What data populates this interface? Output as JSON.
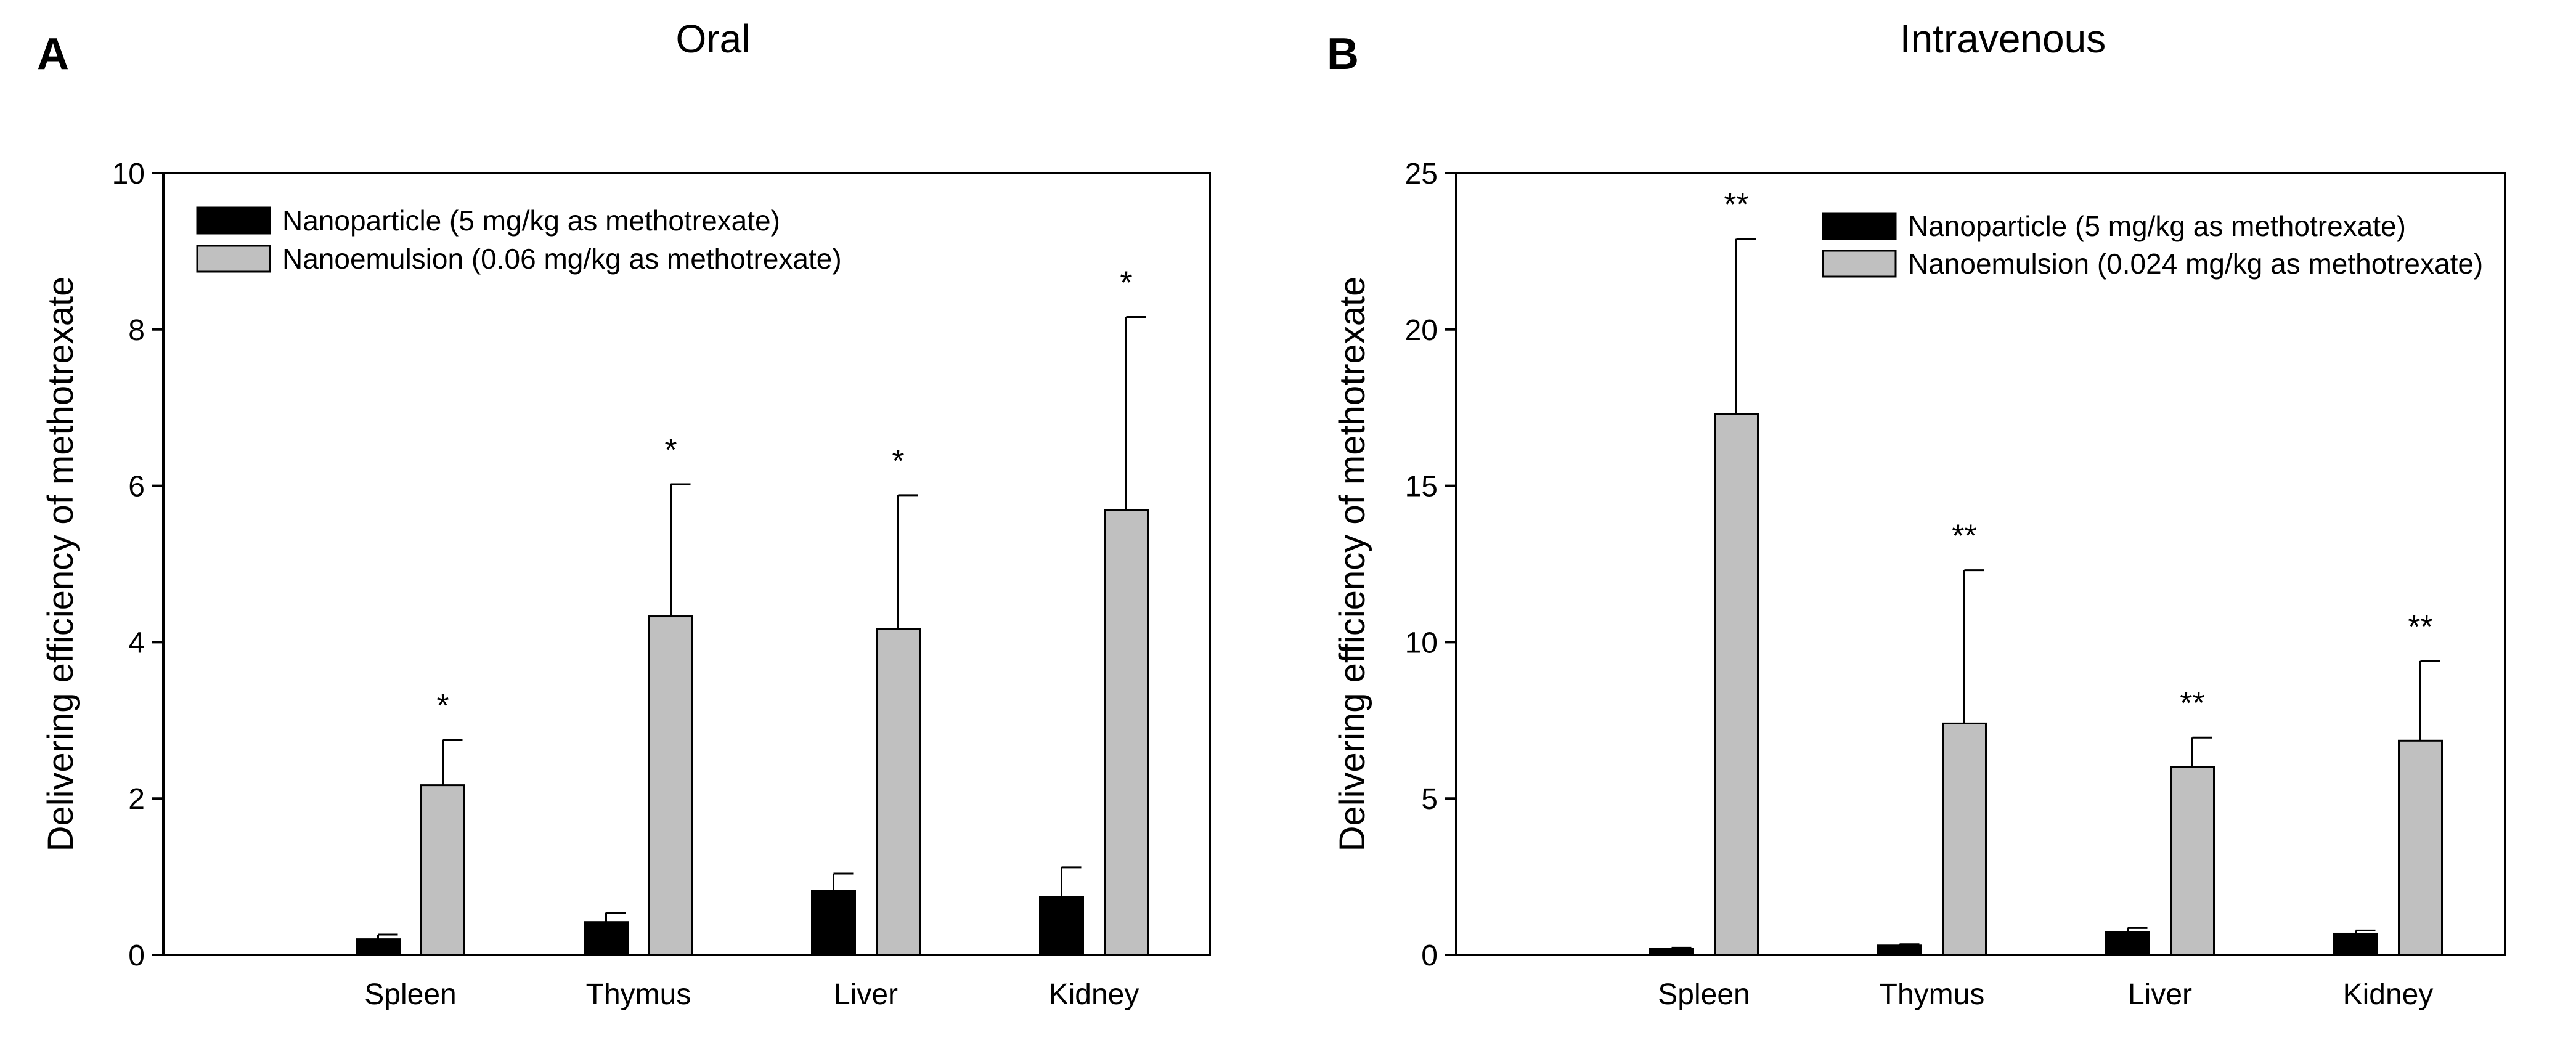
{
  "colors": {
    "series_1": "#000000",
    "series_2": "#c0c0c0",
    "axis": "#000000"
  },
  "chart_data": [
    {
      "type": "bar",
      "panel_letter": "A",
      "title": "Oral",
      "xlabel": "",
      "ylabel": "Delivering efficiency of methotrexate",
      "ylim": [
        0,
        10
      ],
      "yticks": [
        "0",
        "2",
        "4",
        "6",
        "8",
        "10"
      ],
      "ytick_values": [
        0,
        2,
        4,
        6,
        8,
        10
      ],
      "categories": [
        "Spleen",
        "Thymus",
        "Liver",
        "Kidney"
      ],
      "legend_position": "top-left",
      "series": [
        {
          "name": "Nanoparticle (5 mg/kg as methotrexate)",
          "values": [
            0.2,
            0.42,
            0.82,
            0.74
          ],
          "errors": [
            0.06,
            0.12,
            0.22,
            0.38
          ]
        },
        {
          "name": "Nanoemulsion (0.06 mg/kg as methotrexate)",
          "values": [
            2.17,
            4.33,
            4.17,
            5.69
          ],
          "errors": [
            0.58,
            1.69,
            1.71,
            2.47
          ]
        }
      ],
      "annotations": [
        "*",
        "*",
        "*",
        "*"
      ]
    },
    {
      "type": "bar",
      "panel_letter": "B",
      "title": "Intravenous",
      "xlabel": "",
      "ylabel": "Delivering efficiency of methotrexate",
      "ylim": [
        0,
        25
      ],
      "yticks": [
        "0",
        "5",
        "10",
        "15",
        "20",
        "25"
      ],
      "ytick_values": [
        0,
        5,
        10,
        15,
        20,
        25
      ],
      "categories": [
        "Spleen",
        "Thymus",
        "Liver",
        "Kidney"
      ],
      "legend_position": "top-right",
      "series": [
        {
          "name": "Nanoparticle (5 mg/kg as methotrexate)",
          "values": [
            0.2,
            0.3,
            0.72,
            0.68
          ],
          "errors": [
            0.03,
            0.04,
            0.14,
            0.1
          ]
        },
        {
          "name": "Nanoemulsion (0.024 mg/kg as methotrexate)",
          "values": [
            17.3,
            7.4,
            6.0,
            6.85
          ],
          "errors": [
            5.6,
            4.9,
            0.95,
            2.55
          ]
        }
      ],
      "annotations": [
        "**",
        "**",
        "**",
        "**"
      ]
    }
  ]
}
